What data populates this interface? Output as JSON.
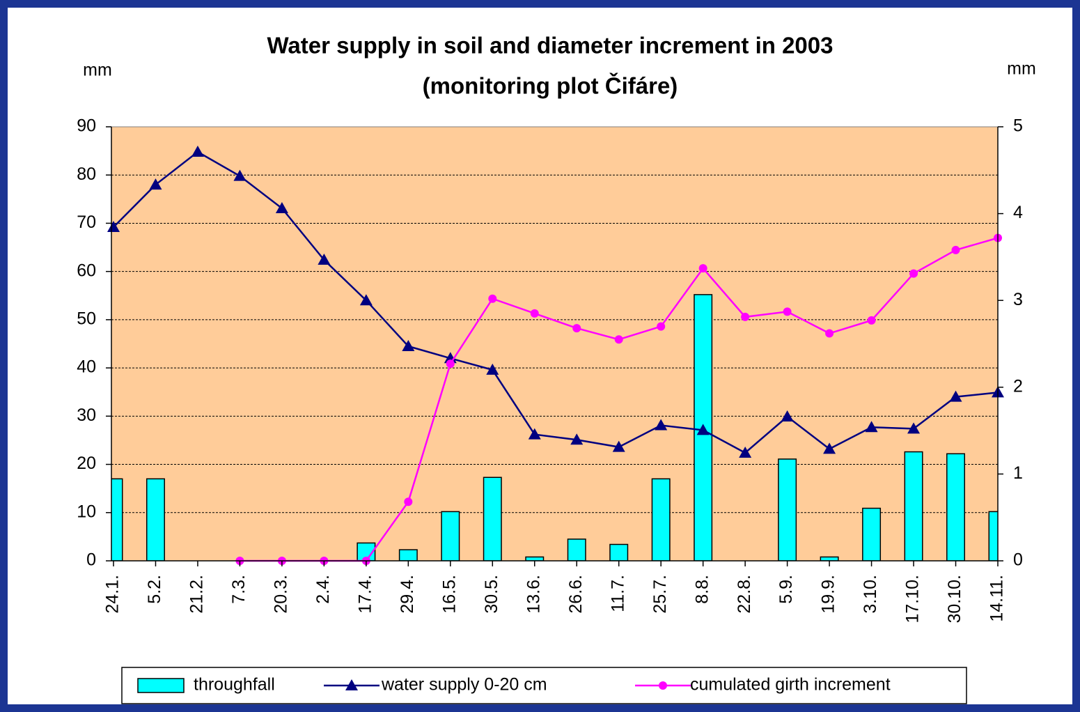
{
  "chart_data": {
    "type": "bar_line",
    "title": "Water supply in soil and diameter increment in 2003",
    "subtitle": "(monitoring plot Čifáre)",
    "y_label": "mm",
    "y2_label": "mm",
    "categories": [
      "24.1.",
      "5.2.",
      "21.2.",
      "7.3.",
      "20.3.",
      "2.4.",
      "17.4.",
      "29.4.",
      "16.5.",
      "30.5.",
      "13.6.",
      "26.6.",
      "11.7.",
      "25.7.",
      "8.8.",
      "22.8.",
      "5.9.",
      "19.9.",
      "3.10.",
      "17.10.",
      "30.10.",
      "14.11."
    ],
    "series": [
      {
        "name": "throughfall",
        "type": "bar",
        "color": "#00ffff",
        "values": [
          17,
          17,
          0,
          0,
          0,
          0,
          3.7,
          2.3,
          10.2,
          17.3,
          0.8,
          4.5,
          3.4,
          17,
          55.2,
          0,
          21.1,
          0.8,
          10.9,
          22.6,
          22.2,
          10.2
        ]
      },
      {
        "name": "water supply 0-20 cm",
        "type": "line",
        "marker": "triangle",
        "color": "#000080",
        "values": [
          69.2,
          78,
          84.8,
          79.8,
          73.1,
          62.4,
          54,
          44.5,
          42,
          39.6,
          26.2,
          25.1,
          23.6,
          28.1,
          27.1,
          22.4,
          29.9,
          23.2,
          27.7,
          27.4,
          34,
          34.9
        ]
      },
      {
        "name": "cumulated girth increment",
        "type": "line",
        "marker": "circle",
        "color": "#ff00ff",
        "axis": "y2",
        "values": [
          null,
          null,
          null,
          0,
          0,
          0,
          0,
          0.68,
          2.27,
          3.02,
          2.85,
          2.68,
          2.55,
          2.7,
          3.37,
          2.81,
          2.87,
          2.62,
          2.77,
          3.31,
          3.58,
          3.72
        ]
      }
    ],
    "ylim": [
      0,
      90
    ],
    "yticks": [
      0,
      10,
      20,
      30,
      40,
      50,
      60,
      70,
      80,
      90
    ],
    "y2lim": [
      0,
      5
    ],
    "y2ticks": [
      0,
      1,
      2,
      3,
      4,
      5
    ],
    "grid": true,
    "plot_background": "#ffcc99",
    "legend": "bottom"
  }
}
